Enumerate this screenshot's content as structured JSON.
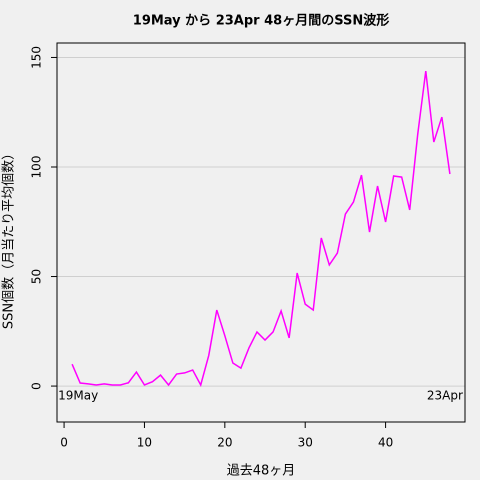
{
  "chart_data": {
    "type": "line",
    "title": "19May から 23Apr  48ヶ月間のSSN波形",
    "x_label": "過去48ヶ月",
    "y_label": "SSN個数（月当たり平均個数）",
    "annotations": [
      "19May",
      "23Apr"
    ],
    "x": [
      1,
      2,
      3,
      4,
      5,
      6,
      7,
      8,
      9,
      10,
      11,
      12,
      13,
      14,
      15,
      16,
      17,
      18,
      19,
      20,
      21,
      22,
      23,
      24,
      25,
      26,
      27,
      28,
      29,
      30,
      31,
      32,
      33,
      34,
      35,
      36,
      37,
      38,
      39,
      40,
      41,
      42,
      43,
      44,
      45,
      46,
      47,
      48
    ],
    "series": [
      {
        "name": "SSN",
        "color": "#ff00ff",
        "values": [
          10,
          1.4,
          1,
          0.5,
          1,
          0.5,
          0.5,
          1.5,
          6.4,
          0.5,
          2,
          5,
          0.5,
          5.5,
          6,
          7.3,
          0.5,
          14,
          34.7,
          23,
          10.5,
          8.2,
          17.4,
          24.7,
          21,
          24.7,
          34.3,
          22,
          51.6,
          37.4,
          34.7,
          67.6,
          55.3,
          60.7,
          78.5,
          84,
          96.3,
          70.3,
          91.3,
          74.9,
          95.9,
          95.4,
          80.4,
          115,
          143.8,
          111.4,
          122.8,
          96.8
        ]
      }
    ],
    "xlim": [
      -0.88,
      49.88
    ],
    "ylim": [
      -16.4,
      156.6
    ],
    "xticks": [
      0,
      10,
      20,
      30,
      40
    ],
    "yticks": [
      0,
      50,
      100,
      150
    ],
    "grid": true
  }
}
